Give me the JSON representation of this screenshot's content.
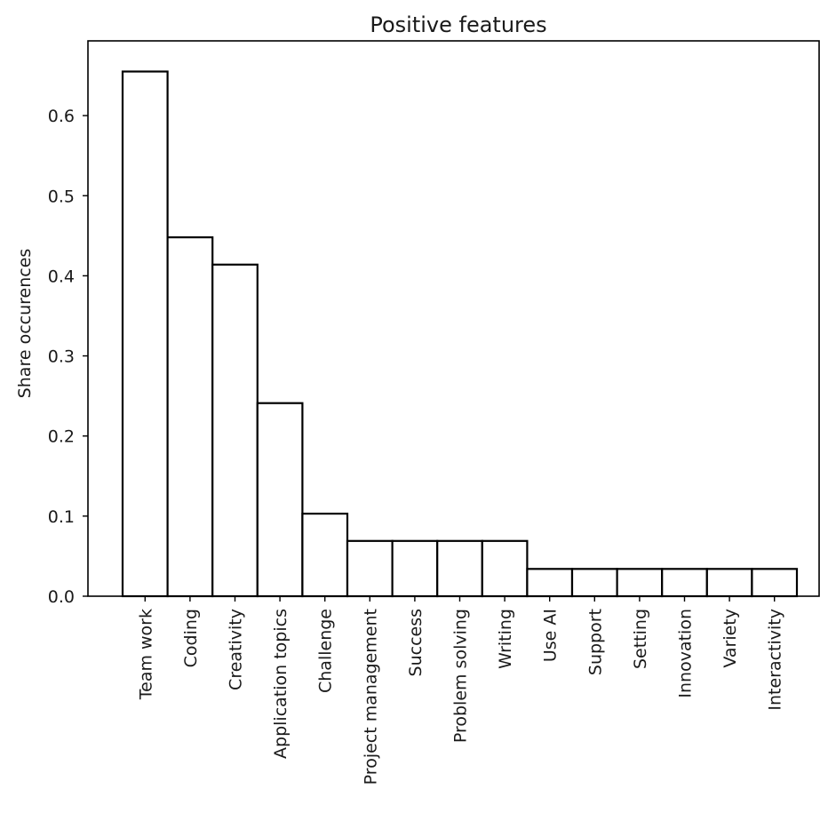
{
  "chart_data": {
    "type": "bar",
    "title": "Positive features",
    "xlabel": "",
    "ylabel": "Share occurences",
    "categories": [
      "Team work",
      "Coding",
      "Creativity",
      "Application topics",
      "Challenge",
      "Project management",
      "Success",
      "Problem solving",
      "Writing",
      "Use AI",
      "Support",
      "Setting",
      "Innovation",
      "Variety",
      "Interactivity"
    ],
    "values": [
      0.655,
      0.448,
      0.414,
      0.241,
      0.103,
      0.069,
      0.069,
      0.069,
      0.069,
      0.034,
      0.034,
      0.034,
      0.034,
      0.034,
      0.034
    ],
    "ylim": [
      0,
      0.69
    ],
    "yticks": [
      "0.0",
      "0.1",
      "0.2",
      "0.3",
      "0.4",
      "0.5",
      "0.6"
    ],
    "grid": false,
    "colors": {
      "bar_fill": "#ffffff",
      "bar_edge": "#000000"
    }
  }
}
